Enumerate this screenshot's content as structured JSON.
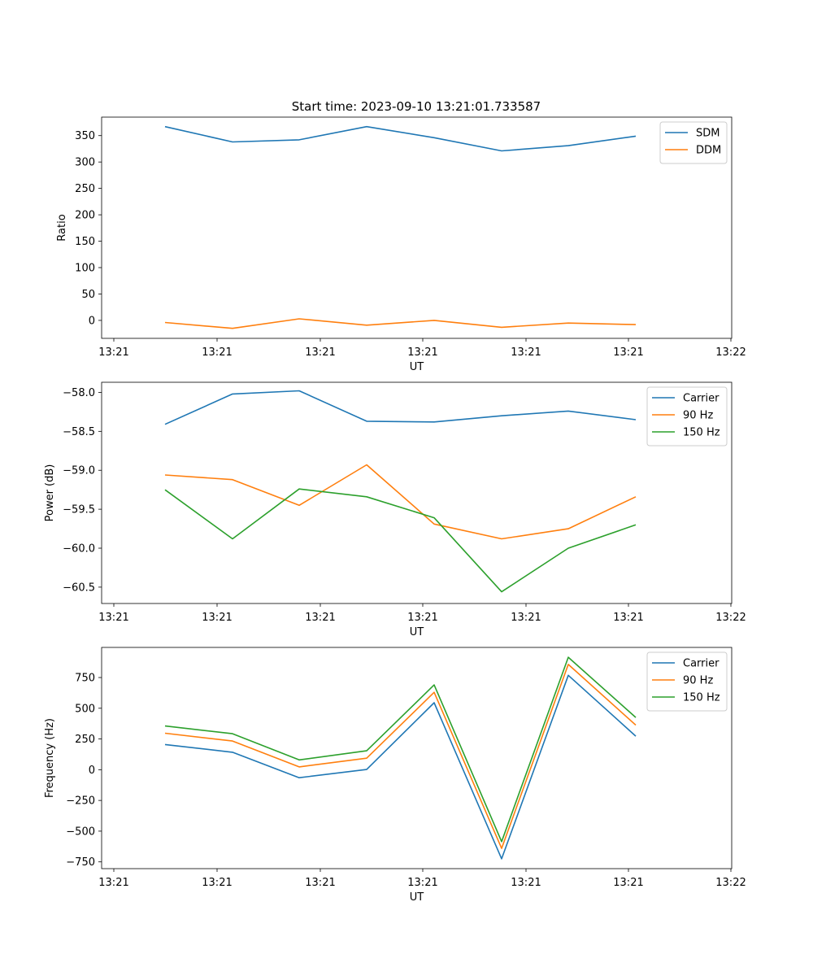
{
  "figure_title": "Start time: 2023-09-10 13:21:01.733587",
  "colors": {
    "blue": "#1f77b4",
    "orange": "#ff7f0e",
    "green": "#2ca02c"
  },
  "chart_data": [
    {
      "type": "line",
      "id": "ratio",
      "title": "Start time: 2023-09-10 13:21:01.733587",
      "xlabel": "UT",
      "ylabel": "Ratio",
      "xticks": [
        "13:21",
        "13:21",
        "13:21",
        "13:21",
        "13:21",
        "13:21",
        "13:22"
      ],
      "yticks": [
        0,
        50,
        100,
        150,
        200,
        250,
        300,
        350
      ],
      "ylim": [
        -34,
        385
      ],
      "legend": "top-right",
      "series": [
        {
          "name": "SDM",
          "color": "blue",
          "values": [
            367,
            338,
            342,
            367,
            346,
            321,
            331,
            349
          ]
        },
        {
          "name": "DDM",
          "color": "orange",
          "values": [
            -4,
            -15,
            3,
            -9,
            0,
            -13,
            -5,
            -8
          ]
        }
      ]
    },
    {
      "type": "line",
      "id": "power",
      "xlabel": "UT",
      "ylabel": "Power (dB)",
      "xticks": [
        "13:21",
        "13:21",
        "13:21",
        "13:21",
        "13:21",
        "13:21",
        "13:22"
      ],
      "yticks": [
        "−58.0",
        "−58.5",
        "−59.0",
        "−59.5",
        "−60.0",
        "−60.5"
      ],
      "ytick_values": [
        -58.0,
        -58.5,
        -59.0,
        -59.5,
        -60.0,
        -60.5
      ],
      "ylim": [
        -60.71,
        -57.87
      ],
      "legend": "top-right",
      "series": [
        {
          "name": "Carrier",
          "color": "blue",
          "values": [
            -58.41,
            -58.02,
            -57.98,
            -58.37,
            -58.38,
            -58.3,
            -58.24,
            -58.35
          ]
        },
        {
          "name": "90 Hz",
          "color": "orange",
          "values": [
            -59.06,
            -59.12,
            -59.45,
            -58.93,
            -59.69,
            -59.88,
            -59.75,
            -59.34
          ]
        },
        {
          "name": "150 Hz",
          "color": "green",
          "values": [
            -59.25,
            -59.88,
            -59.24,
            -59.34,
            -59.61,
            -60.56,
            -60.0,
            -59.7
          ]
        }
      ]
    },
    {
      "type": "line",
      "id": "frequency",
      "xlabel": "UT",
      "ylabel": "Frequency (Hz)",
      "xticks": [
        "13:21",
        "13:21",
        "13:21",
        "13:21",
        "13:21",
        "13:21",
        "13:22"
      ],
      "yticks": [
        "−750",
        "−500",
        "−250",
        "0",
        "250",
        "500",
        "750"
      ],
      "ytick_values": [
        -750,
        -500,
        -250,
        0,
        250,
        500,
        750
      ],
      "ylim": [
        -805,
        995
      ],
      "legend": "top-right",
      "series": [
        {
          "name": "Carrier",
          "color": "blue",
          "values": [
            205,
            142,
            -65,
            2,
            545,
            -725,
            768,
            273
          ]
        },
        {
          "name": "90 Hz",
          "color": "orange",
          "values": [
            297,
            233,
            23,
            94,
            630,
            -640,
            857,
            363
          ]
        },
        {
          "name": "150 Hz",
          "color": "green",
          "values": [
            356,
            293,
            80,
            154,
            690,
            -585,
            915,
            425
          ]
        }
      ]
    }
  ]
}
